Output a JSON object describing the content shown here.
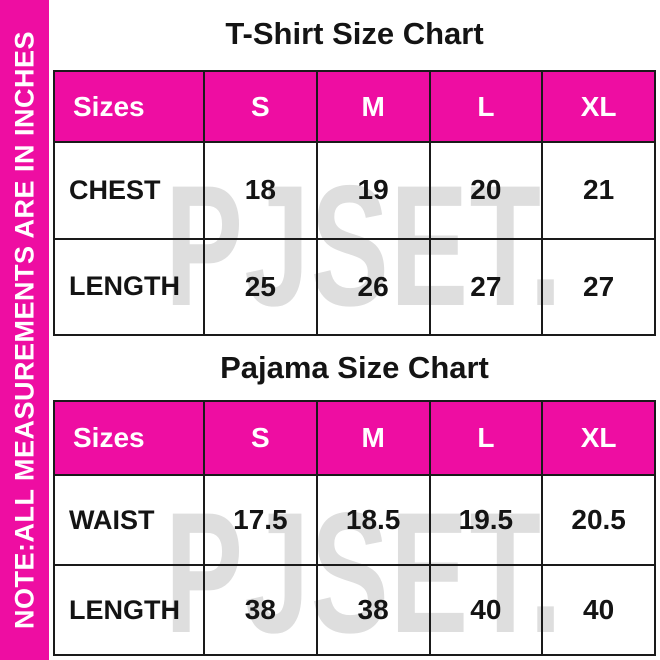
{
  "note_sidebar": {
    "text": "NOTE:ALL MEASUREMENTS ARE IN INCHES"
  },
  "watermark": {
    "text": "PJSET."
  },
  "colors": {
    "accent_pink": "#EE0DA2",
    "text": "#141414",
    "header_text": "#ffffff",
    "watermark_gray": "#dedede",
    "border": "#1a1a1a"
  },
  "sections": [
    {
      "title": "T-Shirt Size Chart",
      "table": {
        "header": [
          "Sizes",
          "S",
          "M",
          "L",
          "XL"
        ],
        "rows": [
          {
            "label": "CHEST",
            "values": [
              "18",
              "19",
              "20",
              "21"
            ]
          },
          {
            "label": "LENGTH",
            "values": [
              "25",
              "26",
              "27",
              "27"
            ]
          }
        ]
      }
    },
    {
      "title": "Pajama Size Chart",
      "table": {
        "header": [
          "Sizes",
          "S",
          "M",
          "L",
          "XL"
        ],
        "rows": [
          {
            "label": "WAIST",
            "values": [
              "17.5",
              "18.5",
              "19.5",
              "20.5"
            ]
          },
          {
            "label": "LENGTH",
            "values": [
              "38",
              "38",
              "40",
              "40"
            ]
          }
        ]
      }
    }
  ]
}
